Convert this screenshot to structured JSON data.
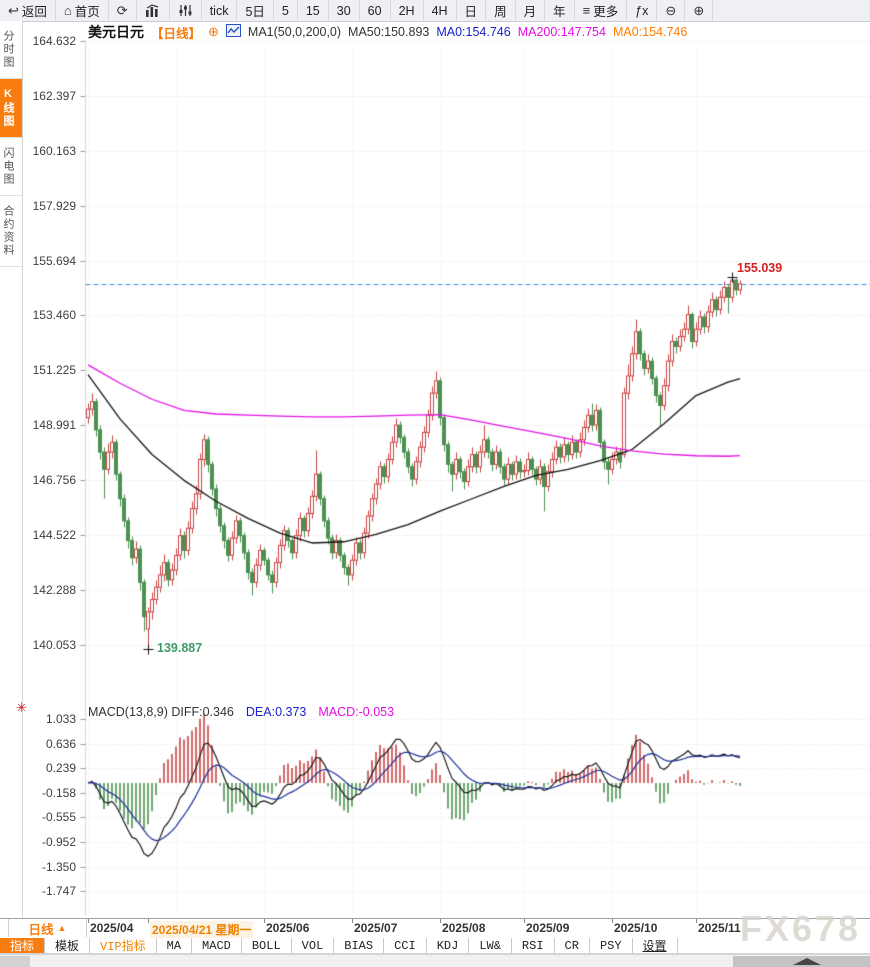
{
  "toolbar": {
    "items": [
      {
        "glyph": "↩",
        "label": "返回",
        "name": "back-button"
      },
      {
        "glyph": "⌂",
        "label": "首页",
        "name": "home-button"
      },
      {
        "glyph": "⟳",
        "label": "",
        "name": "refresh-button"
      },
      {
        "svg": "bars",
        "label": "",
        "name": "chart-style-button"
      },
      {
        "svg": "sliders",
        "label": "",
        "name": "indicator-panel-button"
      },
      {
        "glyph": "",
        "label": "tick",
        "name": "interval-tick"
      },
      {
        "glyph": "",
        "label": "5日",
        "name": "interval-5day"
      },
      {
        "glyph": "",
        "label": "5",
        "name": "interval-5min"
      },
      {
        "glyph": "",
        "label": "15",
        "name": "interval-15min"
      },
      {
        "glyph": "",
        "label": "30",
        "name": "interval-30min"
      },
      {
        "glyph": "",
        "label": "60",
        "name": "interval-60min"
      },
      {
        "glyph": "",
        "label": "2H",
        "name": "interval-2h"
      },
      {
        "glyph": "",
        "label": "4H",
        "name": "interval-4h"
      },
      {
        "glyph": "",
        "label": "日",
        "name": "interval-day"
      },
      {
        "glyph": "",
        "label": "周",
        "name": "interval-week"
      },
      {
        "glyph": "",
        "label": "月",
        "name": "interval-month"
      },
      {
        "glyph": "",
        "label": "年",
        "name": "interval-year"
      },
      {
        "glyph": "≡",
        "label": "更多",
        "name": "more-button"
      },
      {
        "glyph": "",
        "label": "ƒx",
        "name": "formula-button"
      },
      {
        "glyph": "⊖",
        "label": "",
        "name": "zoom-out-button"
      },
      {
        "glyph": "⊕",
        "label": "",
        "name": "zoom-in-button"
      }
    ]
  },
  "sidebar": {
    "items": [
      {
        "label": "分时图",
        "active": false,
        "name": "sidebar-item-time-chart"
      },
      {
        "label": "K线图",
        "active": true,
        "name": "sidebar-item-kline-chart"
      },
      {
        "label": "闪电图",
        "active": false,
        "name": "sidebar-item-lightning-chart"
      },
      {
        "label": "合约资料",
        "active": false,
        "name": "sidebar-item-contract-info"
      }
    ]
  },
  "header": {
    "symbol": "美元日元",
    "period": "【日线】",
    "add_icon": "⊕",
    "ma_settings": "MA1(50,0,200,0)",
    "ma50": "MA50:150.893",
    "ma0_blue": "MA0:154.746",
    "ma200": "MA200:147.754",
    "ma0_orange": "MA0:154.746"
  },
  "macd_header": {
    "gear_icon": "✳",
    "formula_and_diff": "MACD(13,8,9) DIFF:0.346",
    "dea": "DEA:0.373",
    "macd": "MACD:-0.053"
  },
  "annotations": {
    "high_label": "155.039",
    "low_label": "139.887"
  },
  "x_axis": {
    "period_label": "日线",
    "period_arrow": "▲",
    "labels": [
      {
        "text": "2025/04",
        "index": 0,
        "highlight": false
      },
      {
        "text": "2025/04/21 星期一",
        "index": 15,
        "highlight": true
      },
      {
        "text": "2025/06",
        "index": 44,
        "highlight": false
      },
      {
        "text": "2025/07",
        "index": 66,
        "highlight": false
      },
      {
        "text": "2025/08",
        "index": 88,
        "highlight": false
      },
      {
        "text": "2025/09",
        "index": 109,
        "highlight": false
      },
      {
        "text": "2025/10",
        "index": 131,
        "highlight": false
      },
      {
        "text": "2025/11",
        "index": 152,
        "highlight": false
      }
    ]
  },
  "tabs": [
    {
      "label": "指标",
      "style": "active",
      "name": "tab-indicator"
    },
    {
      "label": "模板",
      "style": "",
      "name": "tab-template"
    },
    {
      "label": "VIP指标",
      "style": "vip",
      "name": "tab-vip-indicator"
    },
    {
      "label": "MA",
      "style": "",
      "name": "tab-ma"
    },
    {
      "label": "MACD",
      "style": "",
      "name": "tab-macd"
    },
    {
      "label": "BOLL",
      "style": "",
      "name": "tab-boll"
    },
    {
      "label": "VOL",
      "style": "",
      "name": "tab-vol"
    },
    {
      "label": "BIAS",
      "style": "",
      "name": "tab-bias"
    },
    {
      "label": "CCI",
      "style": "",
      "name": "tab-cci"
    },
    {
      "label": "KDJ",
      "style": "",
      "name": "tab-kdj"
    },
    {
      "label": "LW&",
      "style": "",
      "name": "tab-lw"
    },
    {
      "label": "RSI",
      "style": "",
      "name": "tab-rsi"
    },
    {
      "label": "CR",
      "style": "",
      "name": "tab-cr"
    },
    {
      "label": "PSY",
      "style": "",
      "name": "tab-psy"
    },
    {
      "label": "设置",
      "style": "settings",
      "name": "tab-settings"
    }
  ],
  "watermark": "FX678",
  "chart_data": {
    "type": "candlestick_with_macd",
    "title": "美元日元 日线 (USD/JPY Daily)",
    "colors": {
      "up": "#c94444",
      "down": "#4d9150",
      "ma50": "#141414",
      "ma200": "#e613e6",
      "current_line": "#3a8ee6",
      "macd_diff": "#1a1a1a",
      "macd_dea": "#1e3299",
      "bar_pos": "#c94444",
      "bar_neg": "#4d9150"
    },
    "price_axis_values": [
      164.632,
      162.397,
      160.163,
      157.929,
      155.694,
      153.46,
      151.225,
      148.991,
      146.756,
      144.522,
      142.288,
      140.053
    ],
    "macd_axis_values": [
      1.033,
      0.636,
      0.239,
      -0.158,
      -0.555,
      -0.952,
      -1.35,
      -1.747
    ],
    "current_price": 154.746,
    "high_marker": {
      "index": 161,
      "price": 155.039
    },
    "low_marker": {
      "index": 15,
      "price": 139.887
    },
    "month_gridline_indices": [
      0,
      22,
      44,
      66,
      88,
      109,
      131,
      152
    ],
    "month_tick_indices": [
      0,
      15,
      44,
      66,
      88,
      109,
      131,
      152
    ],
    "ma_indices": [
      0,
      8,
      16,
      24,
      32,
      40,
      48,
      56,
      64,
      72,
      80,
      88,
      96,
      104,
      112,
      120,
      128,
      136,
      144,
      152,
      160,
      163
    ],
    "ma50_values": [
      151.05,
      149.25,
      147.8,
      146.75,
      145.9,
      145.2,
      144.6,
      144.2,
      144.25,
      144.55,
      144.95,
      145.5,
      146.0,
      146.5,
      146.95,
      147.2,
      147.55,
      148.0,
      149.05,
      150.2,
      150.75,
      150.893
    ],
    "ma200_values": [
      151.45,
      150.7,
      150.05,
      149.6,
      149.45,
      149.4,
      149.36,
      149.33,
      149.33,
      149.36,
      149.4,
      149.42,
      149.2,
      148.95,
      148.7,
      148.45,
      148.15,
      147.95,
      147.82,
      147.75,
      147.73,
      147.754
    ],
    "macd_params": {
      "fast": 8,
      "slow": 13,
      "signal": 9,
      "diff_last": 0.346,
      "dea_last": 0.373,
      "bar_last": -0.053
    },
    "candles": [
      [
        149.3,
        149.9,
        149.1,
        149.65
      ],
      [
        149.65,
        150.3,
        149.4,
        149.95
      ],
      [
        149.95,
        150.1,
        148.55,
        148.8
      ],
      [
        148.8,
        149.0,
        147.6,
        147.9
      ],
      [
        147.9,
        148.1,
        146.05,
        147.2
      ],
      [
        147.2,
        148.25,
        147.0,
        147.9
      ],
      [
        147.9,
        148.6,
        147.65,
        148.3
      ],
      [
        148.3,
        148.45,
        146.75,
        147.0
      ],
      [
        147.0,
        147.15,
        145.7,
        146.0
      ],
      [
        146.0,
        146.2,
        144.85,
        145.1
      ],
      [
        145.1,
        145.25,
        144.0,
        144.3
      ],
      [
        144.3,
        144.5,
        143.3,
        143.6
      ],
      [
        143.6,
        144.3,
        143.4,
        143.95
      ],
      [
        143.95,
        144.1,
        142.3,
        142.6
      ],
      [
        142.6,
        142.75,
        140.6,
        141.2
      ],
      [
        140.7,
        141.6,
        139.887,
        141.4
      ],
      [
        141.4,
        142.2,
        141.1,
        141.9
      ],
      [
        141.9,
        142.7,
        141.7,
        142.4
      ],
      [
        142.4,
        143.3,
        142.2,
        142.9
      ],
      [
        142.9,
        143.75,
        142.65,
        143.4
      ],
      [
        143.4,
        143.55,
        142.45,
        142.7
      ],
      [
        142.7,
        143.4,
        142.5,
        143.1
      ],
      [
        143.1,
        144.0,
        142.9,
        143.7
      ],
      [
        143.7,
        144.8,
        143.5,
        144.5
      ],
      [
        144.5,
        144.7,
        143.6,
        143.9
      ],
      [
        143.9,
        145.1,
        143.7,
        144.8
      ],
      [
        144.8,
        145.9,
        144.6,
        145.6
      ],
      [
        145.6,
        146.55,
        145.4,
        146.2
      ],
      [
        146.2,
        147.85,
        146.0,
        147.6
      ],
      [
        147.6,
        148.65,
        147.35,
        148.4
      ],
      [
        148.4,
        148.55,
        147.1,
        147.4
      ],
      [
        147.4,
        147.55,
        146.15,
        146.4
      ],
      [
        146.4,
        146.6,
        145.3,
        145.6
      ],
      [
        145.6,
        145.8,
        144.65,
        144.9
      ],
      [
        144.9,
        145.05,
        144.0,
        144.3
      ],
      [
        144.3,
        144.45,
        143.45,
        143.7
      ],
      [
        143.7,
        144.7,
        143.5,
        144.4
      ],
      [
        144.4,
        145.35,
        144.2,
        145.1
      ],
      [
        145.1,
        145.25,
        144.25,
        144.5
      ],
      [
        144.5,
        144.65,
        143.55,
        143.8
      ],
      [
        143.8,
        143.95,
        142.75,
        143.0
      ],
      [
        143.0,
        143.2,
        142.1,
        142.6
      ],
      [
        142.6,
        143.6,
        142.4,
        143.3
      ],
      [
        143.3,
        144.15,
        143.1,
        143.9
      ],
      [
        143.9,
        144.05,
        143.3,
        143.5
      ],
      [
        143.5,
        143.65,
        142.7,
        142.9
      ],
      [
        142.9,
        143.1,
        142.15,
        142.6
      ],
      [
        142.6,
        143.65,
        142.4,
        143.4
      ],
      [
        143.4,
        144.35,
        143.2,
        144.1
      ],
      [
        144.1,
        144.95,
        143.9,
        144.7
      ],
      [
        144.7,
        144.85,
        144.05,
        144.3
      ],
      [
        144.3,
        144.45,
        143.55,
        143.8
      ],
      [
        143.8,
        144.75,
        143.6,
        144.5
      ],
      [
        144.5,
        145.45,
        144.3,
        145.2
      ],
      [
        145.2,
        145.35,
        144.45,
        144.7
      ],
      [
        144.7,
        145.65,
        144.5,
        145.4
      ],
      [
        145.4,
        146.35,
        145.2,
        146.1
      ],
      [
        146.1,
        148.0,
        145.9,
        147.0
      ],
      [
        147.0,
        147.15,
        145.75,
        146.0
      ],
      [
        146.0,
        146.15,
        144.85,
        145.1
      ],
      [
        145.1,
        145.25,
        144.15,
        144.4
      ],
      [
        144.4,
        144.55,
        143.55,
        143.8
      ],
      [
        143.8,
        144.55,
        143.6,
        144.3
      ],
      [
        144.3,
        144.45,
        143.45,
        143.7
      ],
      [
        143.7,
        143.85,
        142.95,
        143.2
      ],
      [
        143.2,
        143.35,
        142.5,
        142.9
      ],
      [
        142.9,
        143.75,
        142.7,
        143.5
      ],
      [
        143.5,
        144.45,
        143.3,
        144.2
      ],
      [
        144.2,
        144.35,
        143.55,
        143.8
      ],
      [
        143.8,
        144.85,
        143.6,
        144.6
      ],
      [
        144.6,
        145.55,
        144.4,
        145.3
      ],
      [
        145.3,
        146.25,
        145.1,
        146.0
      ],
      [
        146.0,
        146.85,
        145.8,
        146.6
      ],
      [
        146.6,
        147.55,
        146.4,
        147.3
      ],
      [
        147.3,
        147.45,
        146.65,
        146.9
      ],
      [
        146.9,
        147.85,
        146.7,
        147.6
      ],
      [
        147.6,
        148.55,
        147.4,
        148.3
      ],
      [
        148.3,
        149.3,
        148.1,
        149.0
      ],
      [
        149.0,
        149.15,
        148.25,
        148.5
      ],
      [
        148.5,
        148.65,
        147.65,
        147.9
      ],
      [
        147.9,
        148.05,
        147.05,
        147.3
      ],
      [
        147.3,
        147.45,
        146.5,
        146.8
      ],
      [
        146.8,
        147.75,
        146.6,
        147.5
      ],
      [
        147.5,
        148.35,
        147.3,
        148.1
      ],
      [
        148.1,
        148.95,
        147.9,
        148.7
      ],
      [
        148.7,
        149.65,
        148.5,
        149.4
      ],
      [
        149.4,
        150.6,
        149.2,
        150.3
      ],
      [
        150.3,
        151.2,
        150.1,
        150.8
      ],
      [
        150.8,
        150.95,
        149.0,
        149.3
      ],
      [
        149.3,
        149.45,
        147.95,
        148.2
      ],
      [
        148.2,
        148.35,
        147.1,
        147.4
      ],
      [
        147.4,
        147.55,
        146.3,
        147.0
      ],
      [
        147.0,
        147.9,
        146.8,
        147.6
      ],
      [
        147.6,
        147.75,
        146.85,
        147.1
      ],
      [
        147.1,
        147.25,
        146.4,
        146.7
      ],
      [
        146.7,
        147.6,
        146.5,
        147.3
      ],
      [
        147.3,
        148.1,
        147.1,
        147.8
      ],
      [
        147.8,
        147.95,
        147.05,
        147.3
      ],
      [
        147.3,
        148.2,
        147.1,
        147.9
      ],
      [
        147.9,
        149.0,
        147.7,
        148.4
      ],
      [
        148.4,
        148.55,
        147.65,
        147.9
      ],
      [
        147.9,
        148.05,
        147.15,
        147.4
      ],
      [
        147.4,
        148.2,
        147.2,
        147.9
      ],
      [
        147.9,
        148.05,
        147.05,
        147.3
      ],
      [
        147.3,
        147.45,
        146.55,
        146.8
      ],
      [
        146.8,
        147.7,
        146.6,
        147.4
      ],
      [
        147.4,
        147.55,
        146.75,
        147.0
      ],
      [
        147.0,
        147.8,
        146.8,
        147.5
      ],
      [
        147.5,
        147.65,
        146.85,
        147.1
      ],
      [
        147.1,
        147.4,
        146.9,
        147.15
      ],
      [
        147.15,
        147.9,
        146.95,
        147.6
      ],
      [
        147.6,
        147.75,
        146.95,
        147.2
      ],
      [
        147.2,
        147.35,
        146.55,
        146.8
      ],
      [
        146.8,
        147.6,
        146.6,
        147.3
      ],
      [
        147.3,
        147.45,
        145.5,
        146.5
      ],
      [
        146.5,
        147.4,
        146.3,
        147.1
      ],
      [
        147.1,
        147.9,
        146.9,
        147.6
      ],
      [
        147.6,
        148.4,
        147.4,
        148.1
      ],
      [
        148.1,
        148.25,
        147.45,
        147.7
      ],
      [
        147.7,
        148.5,
        147.5,
        148.2
      ],
      [
        148.2,
        148.35,
        147.55,
        147.8
      ],
      [
        147.8,
        148.6,
        147.6,
        148.3
      ],
      [
        148.3,
        148.45,
        147.65,
        147.9
      ],
      [
        147.9,
        148.7,
        147.7,
        148.4
      ],
      [
        148.4,
        149.2,
        148.2,
        148.9
      ],
      [
        148.9,
        149.7,
        148.7,
        149.4
      ],
      [
        149.4,
        149.9,
        148.75,
        149.0
      ],
      [
        149.0,
        149.85,
        148.8,
        149.6
      ],
      [
        149.6,
        149.75,
        148.05,
        148.3
      ],
      [
        148.3,
        148.45,
        147.2,
        147.5
      ],
      [
        147.5,
        147.7,
        146.6,
        147.2
      ],
      [
        147.2,
        147.9,
        147.0,
        147.6
      ],
      [
        147.6,
        148.15,
        147.4,
        147.9
      ],
      [
        147.9,
        148.05,
        147.25,
        147.5
      ],
      [
        147.8,
        150.55,
        147.7,
        150.3
      ],
      [
        150.3,
        151.5,
        150.05,
        151.0
      ],
      [
        151.0,
        152.2,
        150.8,
        151.9
      ],
      [
        151.9,
        153.3,
        151.7,
        152.8
      ],
      [
        152.8,
        152.95,
        151.65,
        151.9
      ],
      [
        151.9,
        152.05,
        151.05,
        151.3
      ],
      [
        151.3,
        151.9,
        151.1,
        151.6
      ],
      [
        151.6,
        151.75,
        150.65,
        150.9
      ],
      [
        150.9,
        151.05,
        149.95,
        150.2
      ],
      [
        150.2,
        150.35,
        148.95,
        149.8
      ],
      [
        149.8,
        150.9,
        149.6,
        150.6
      ],
      [
        150.6,
        151.9,
        150.4,
        151.6
      ],
      [
        151.6,
        152.7,
        151.4,
        152.4
      ],
      [
        152.4,
        152.6,
        151.95,
        152.2
      ],
      [
        152.2,
        152.9,
        152.0,
        152.6
      ],
      [
        152.6,
        153.2,
        152.4,
        152.9
      ],
      [
        152.9,
        153.9,
        152.7,
        153.5
      ],
      [
        153.5,
        153.6,
        152.15,
        152.4
      ],
      [
        152.4,
        153.2,
        152.2,
        152.9
      ],
      [
        152.9,
        153.7,
        152.7,
        153.4
      ],
      [
        153.4,
        153.55,
        152.75,
        153.0
      ],
      [
        153.0,
        153.9,
        152.8,
        153.6
      ],
      [
        153.6,
        154.4,
        153.4,
        154.1
      ],
      [
        154.1,
        154.25,
        153.45,
        153.7
      ],
      [
        153.7,
        154.5,
        153.5,
        154.2
      ],
      [
        154.2,
        154.85,
        154.0,
        154.6
      ],
      [
        154.6,
        154.75,
        153.55,
        154.2
      ],
      [
        154.2,
        155.039,
        154.0,
        154.9
      ],
      [
        154.9,
        155.0,
        154.3,
        154.5
      ],
      [
        154.5,
        154.9,
        154.35,
        154.746
      ]
    ]
  }
}
